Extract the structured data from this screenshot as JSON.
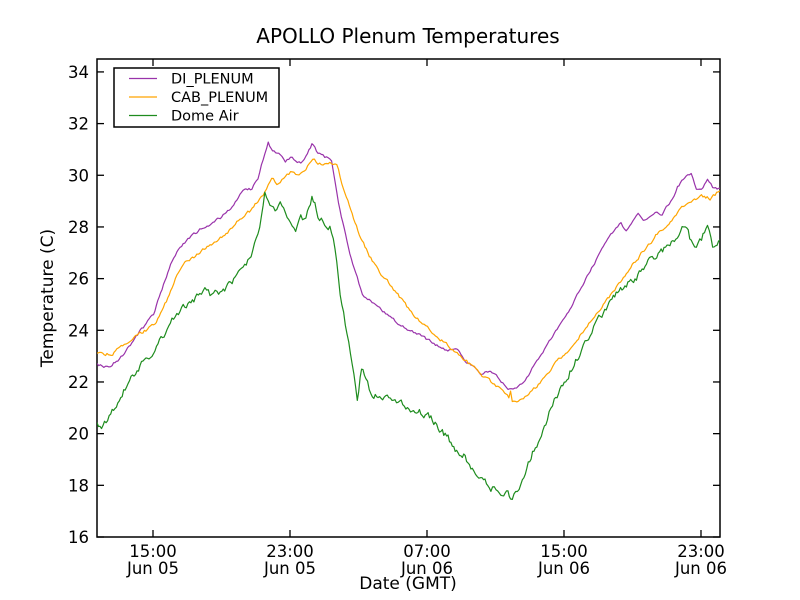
{
  "figure": {
    "background": "#ffffff",
    "axis_color": "#000000"
  },
  "chart_data": {
    "type": "line",
    "title": "APOLLO Plenum Temperatures",
    "xlabel": "Date (GMT)",
    "ylabel": "Temperature (C)",
    "grid": false,
    "legend_position": "upper left",
    "ylim": [
      16,
      34.5
    ],
    "xlim_hours": [
      0,
      36.38
    ],
    "y_ticks": [
      16,
      18,
      20,
      22,
      24,
      26,
      28,
      30,
      32,
      34
    ],
    "x_ticks": [
      {
        "t": 3.27,
        "time": "15:00",
        "date": "Jun 05"
      },
      {
        "t": 11.27,
        "time": "23:00",
        "date": "Jun 05"
      },
      {
        "t": 19.27,
        "time": "07:00",
        "date": "Jun 06"
      },
      {
        "t": 27.27,
        "time": "15:00",
        "date": "Jun 06"
      },
      {
        "t": 35.27,
        "time": "23:00",
        "date": "Jun 06"
      }
    ],
    "series": [
      {
        "name": "DI_PLENUM",
        "color": "#9933aa",
        "noise": 0.05,
        "points": [
          [
            0,
            22.7
          ],
          [
            0.4,
            22.58
          ],
          [
            0.8,
            22.62
          ],
          [
            1.3,
            22.9
          ],
          [
            1.7,
            23.2
          ],
          [
            2.2,
            23.7
          ],
          [
            2.7,
            24.1
          ],
          [
            3.3,
            24.6
          ],
          [
            3.8,
            25.6
          ],
          [
            4.3,
            26.5
          ],
          [
            4.85,
            27.2
          ],
          [
            5.4,
            27.6
          ],
          [
            6.0,
            27.9
          ],
          [
            6.6,
            28.05
          ],
          [
            7.2,
            28.35
          ],
          [
            7.8,
            28.7
          ],
          [
            8.35,
            29.3
          ],
          [
            8.7,
            29.5
          ],
          [
            9.05,
            29.45
          ],
          [
            9.4,
            29.9
          ],
          [
            9.7,
            30.6
          ],
          [
            10.0,
            31.25
          ],
          [
            10.25,
            30.95
          ],
          [
            10.7,
            30.8
          ],
          [
            11.0,
            30.55
          ],
          [
            11.3,
            30.7
          ],
          [
            11.6,
            30.55
          ],
          [
            11.9,
            30.5
          ],
          [
            12.2,
            30.75
          ],
          [
            12.55,
            31.2
          ],
          [
            12.9,
            30.85
          ],
          [
            13.3,
            30.7
          ],
          [
            13.7,
            30.6
          ],
          [
            14.1,
            29.0
          ],
          [
            14.6,
            27.4
          ],
          [
            15.1,
            26.2
          ],
          [
            15.5,
            25.4
          ],
          [
            15.9,
            25.2
          ],
          [
            16.5,
            24.85
          ],
          [
            17.4,
            24.35
          ],
          [
            18.4,
            23.95
          ],
          [
            19.4,
            23.6
          ],
          [
            20.4,
            23.2
          ],
          [
            21.0,
            23.3
          ],
          [
            21.5,
            22.85
          ],
          [
            22.0,
            22.6
          ],
          [
            22.4,
            22.35
          ],
          [
            22.9,
            22.45
          ],
          [
            23.4,
            22.15
          ],
          [
            23.8,
            21.85
          ],
          [
            24.1,
            21.72
          ],
          [
            24.5,
            21.7
          ],
          [
            24.8,
            21.95
          ],
          [
            25.2,
            22.25
          ],
          [
            25.6,
            22.8
          ],
          [
            26.3,
            23.4
          ],
          [
            26.7,
            23.9
          ],
          [
            27.2,
            24.4
          ],
          [
            27.7,
            24.95
          ],
          [
            28.2,
            25.55
          ],
          [
            28.8,
            26.3
          ],
          [
            29.4,
            27.0
          ],
          [
            29.9,
            27.55
          ],
          [
            30.3,
            27.95
          ],
          [
            30.6,
            28.15
          ],
          [
            30.9,
            27.8
          ],
          [
            31.2,
            28.05
          ],
          [
            31.6,
            28.5
          ],
          [
            31.9,
            28.3
          ],
          [
            32.3,
            28.4
          ],
          [
            32.7,
            28.55
          ],
          [
            33.0,
            28.45
          ],
          [
            33.5,
            29.0
          ],
          [
            33.9,
            29.55
          ],
          [
            34.4,
            30.0
          ],
          [
            34.7,
            30.05
          ],
          [
            35.0,
            29.5
          ],
          [
            35.3,
            29.45
          ],
          [
            35.65,
            29.85
          ],
          [
            35.95,
            29.55
          ],
          [
            36.38,
            29.5
          ]
        ]
      },
      {
        "name": "CAB_PLENUM",
        "color": "#ffa500",
        "noise": 0.06,
        "points": [
          [
            0,
            23.15
          ],
          [
            0.5,
            23.05
          ],
          [
            1.0,
            23.15
          ],
          [
            1.5,
            23.35
          ],
          [
            1.9,
            23.55
          ],
          [
            2.5,
            23.85
          ],
          [
            3.3,
            24.2
          ],
          [
            3.8,
            24.7
          ],
          [
            4.3,
            25.5
          ],
          [
            4.85,
            26.4
          ],
          [
            5.4,
            26.75
          ],
          [
            6.0,
            27.0
          ],
          [
            6.6,
            27.3
          ],
          [
            7.2,
            27.6
          ],
          [
            7.8,
            27.9
          ],
          [
            8.35,
            28.3
          ],
          [
            8.9,
            28.6
          ],
          [
            9.4,
            29.0
          ],
          [
            9.8,
            29.35
          ],
          [
            10.2,
            29.9
          ],
          [
            10.5,
            29.7
          ],
          [
            10.9,
            29.9
          ],
          [
            11.3,
            30.1
          ],
          [
            11.7,
            29.95
          ],
          [
            12.0,
            30.15
          ],
          [
            12.3,
            30.35
          ],
          [
            12.6,
            30.7
          ],
          [
            12.9,
            30.5
          ],
          [
            13.3,
            30.45
          ],
          [
            13.7,
            30.45
          ],
          [
            14.0,
            30.4
          ],
          [
            14.4,
            29.5
          ],
          [
            14.9,
            28.5
          ],
          [
            15.4,
            27.6
          ],
          [
            15.9,
            26.9
          ],
          [
            16.5,
            26.3
          ],
          [
            17.4,
            25.5
          ],
          [
            18.0,
            25.0
          ],
          [
            18.45,
            24.6
          ],
          [
            19.0,
            24.3
          ],
          [
            19.4,
            24.1
          ],
          [
            20.4,
            23.45
          ],
          [
            21.4,
            22.9
          ],
          [
            22.4,
            22.3
          ],
          [
            23.0,
            22.0
          ],
          [
            23.4,
            21.8
          ],
          [
            23.8,
            21.55
          ],
          [
            24.05,
            21.4
          ],
          [
            24.15,
            21.65
          ],
          [
            24.25,
            21.3
          ],
          [
            24.6,
            21.2
          ],
          [
            24.9,
            21.4
          ],
          [
            25.2,
            21.6
          ],
          [
            25.6,
            21.8
          ],
          [
            26.3,
            22.3
          ],
          [
            26.7,
            22.65
          ],
          [
            27.2,
            23.0
          ],
          [
            27.7,
            23.4
          ],
          [
            28.2,
            23.8
          ],
          [
            28.8,
            24.3
          ],
          [
            29.4,
            24.8
          ],
          [
            29.9,
            25.25
          ],
          [
            30.4,
            25.75
          ],
          [
            31.0,
            26.3
          ],
          [
            31.6,
            26.8
          ],
          [
            32.2,
            27.3
          ],
          [
            32.8,
            27.8
          ],
          [
            33.4,
            28.2
          ],
          [
            33.9,
            28.55
          ],
          [
            34.4,
            28.85
          ],
          [
            34.8,
            29.05
          ],
          [
            35.3,
            29.2
          ],
          [
            35.8,
            29.1
          ],
          [
            36.38,
            29.4
          ]
        ]
      },
      {
        "name": "Dome Air",
        "color": "#1e8c1e",
        "noise": 0.13,
        "points": [
          [
            0,
            20.4
          ],
          [
            0.35,
            20.28
          ],
          [
            0.8,
            20.7
          ],
          [
            1.3,
            21.4
          ],
          [
            1.9,
            22.1
          ],
          [
            2.6,
            22.75
          ],
          [
            3.3,
            23.1
          ],
          [
            4.0,
            23.9
          ],
          [
            4.85,
            24.8
          ],
          [
            5.4,
            25.1
          ],
          [
            6.0,
            25.3
          ],
          [
            6.4,
            25.5
          ],
          [
            6.8,
            25.3
          ],
          [
            7.2,
            25.5
          ],
          [
            7.8,
            25.8
          ],
          [
            8.35,
            26.3
          ],
          [
            8.9,
            26.8
          ],
          [
            9.3,
            27.5
          ],
          [
            9.6,
            28.4
          ],
          [
            9.8,
            29.45
          ],
          [
            10.1,
            28.9
          ],
          [
            10.4,
            28.55
          ],
          [
            10.7,
            28.9
          ],
          [
            11.0,
            28.5
          ],
          [
            11.3,
            28.3
          ],
          [
            11.6,
            28.0
          ],
          [
            11.9,
            28.3
          ],
          [
            12.2,
            28.2
          ],
          [
            12.55,
            29.2
          ],
          [
            12.9,
            28.5
          ],
          [
            13.2,
            28.2
          ],
          [
            13.6,
            28.0
          ],
          [
            13.9,
            27.2
          ],
          [
            14.2,
            25.5
          ],
          [
            14.6,
            23.8
          ],
          [
            15.0,
            22.5
          ],
          [
            15.2,
            21.5
          ],
          [
            15.45,
            22.5
          ],
          [
            15.7,
            22.2
          ],
          [
            16.0,
            21.6
          ],
          [
            16.5,
            21.5
          ],
          [
            17.4,
            21.3
          ],
          [
            18.4,
            20.9
          ],
          [
            19.0,
            20.8
          ],
          [
            19.5,
            20.65
          ],
          [
            20.0,
            20.2
          ],
          [
            20.5,
            19.8
          ],
          [
            21.0,
            19.35
          ],
          [
            21.5,
            19.1
          ],
          [
            22.0,
            18.55
          ],
          [
            22.4,
            18.3
          ],
          [
            23.0,
            17.95
          ],
          [
            23.4,
            17.8
          ],
          [
            23.75,
            17.5
          ],
          [
            24.0,
            17.65
          ],
          [
            24.15,
            17.4
          ],
          [
            24.45,
            17.8
          ],
          [
            24.75,
            18.1
          ],
          [
            25.1,
            18.8
          ],
          [
            25.6,
            19.5
          ],
          [
            26.3,
            20.6
          ],
          [
            26.7,
            21.3
          ],
          [
            27.2,
            21.9
          ],
          [
            27.7,
            22.5
          ],
          [
            28.2,
            23.1
          ],
          [
            28.6,
            23.5
          ],
          [
            29.0,
            24.2
          ],
          [
            29.4,
            24.6
          ],
          [
            29.9,
            25.0
          ],
          [
            30.4,
            25.5
          ],
          [
            31.0,
            25.8
          ],
          [
            31.5,
            26.1
          ],
          [
            32.0,
            26.5
          ],
          [
            32.6,
            26.9
          ],
          [
            33.2,
            27.2
          ],
          [
            33.8,
            27.6
          ],
          [
            34.35,
            28.15
          ],
          [
            34.7,
            27.4
          ],
          [
            35.0,
            27.1
          ],
          [
            35.3,
            27.5
          ],
          [
            35.65,
            28.0
          ],
          [
            35.95,
            27.3
          ],
          [
            36.38,
            27.5
          ]
        ]
      }
    ]
  }
}
